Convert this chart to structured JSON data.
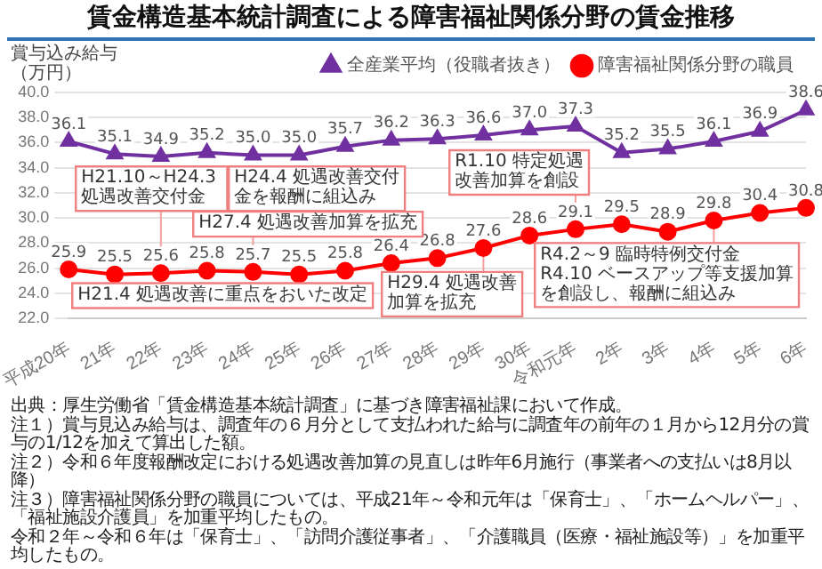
{
  "chart_data": {
    "type": "line",
    "title": "賃金構造基本統計調査による障害福祉関係分野の賃金推移",
    "ylabel": "賞与込み給与（万円）",
    "categories": [
      "平成20年",
      "21年",
      "22年",
      "23年",
      "24年",
      "25年",
      "26年",
      "27年",
      "28年",
      "29年",
      "30年",
      "令和元年",
      "2年",
      "3年",
      "4年",
      "5年",
      "6年"
    ],
    "ylim": [
      22,
      40
    ],
    "yticks": [
      {
        "value": 22,
        "label": "22.0"
      },
      {
        "value": 24,
        "label": "24.0"
      },
      {
        "value": 26,
        "label": "26.0"
      },
      {
        "value": 28,
        "label": "28.0"
      },
      {
        "value": 30,
        "label": "30.0"
      },
      {
        "value": 32,
        "label": "32.0"
      },
      {
        "value": 34,
        "label": "34.0"
      },
      {
        "value": 36,
        "label": "36.0"
      },
      {
        "value": 38,
        "label": "38.0"
      },
      {
        "value": 40,
        "label": "40.0"
      }
    ],
    "grid": "y",
    "legend": "top right",
    "series": [
      {
        "name": "全産業平均（役職者抜き）",
        "color": "#7030a0",
        "marker": "triangle",
        "values": [
          36.1,
          35.1,
          34.9,
          35.2,
          35.0,
          35.0,
          35.7,
          36.2,
          36.3,
          36.6,
          37.0,
          37.3,
          35.2,
          35.5,
          36.1,
          36.9,
          38.6
        ],
        "value_labels": [
          "36.1",
          "35.1",
          "34.9",
          "35.2",
          "35.0",
          "35.0",
          "35.7",
          "36.2",
          "36.3",
          "36.6",
          "37.0",
          "37.3",
          "35.2",
          "35.5",
          "36.1",
          "36.9",
          "38.6"
        ]
      },
      {
        "name": "障害福祉関係分野の職員",
        "color": "#ff0000",
        "marker": "circle",
        "values": [
          25.9,
          25.5,
          25.6,
          25.8,
          25.7,
          25.5,
          25.8,
          26.4,
          26.8,
          27.6,
          28.6,
          29.1,
          29.5,
          28.9,
          29.8,
          30.4,
          30.8
        ],
        "value_labels": [
          "25.9",
          "25.5",
          "25.6",
          "25.8",
          "25.7",
          "25.5",
          "25.8",
          "26.4",
          "26.8",
          "27.6",
          "28.6",
          "29.1",
          "29.5",
          "28.9",
          "29.8",
          "30.4",
          "30.8"
        ]
      }
    ],
    "annotations": [
      {
        "text": "H21.4 処遇改善に重点をおいた改定",
        "x": "21年",
        "y": 25.5
      },
      {
        "text": "H21.10～H24.3 処遇改善交付金",
        "x": "22年",
        "y": 25.6
      },
      {
        "text": "H24.4 処遇改善交付金を報酬に組込み",
        "x": "24年",
        "y": 25.7
      },
      {
        "text": "H27.4 処遇改善加算を拡充",
        "x": "27年",
        "y": 26.4
      },
      {
        "text": "H29.4 処遇改善加算を拡充",
        "x": "29年",
        "y": 27.6
      },
      {
        "text": "R1.10 特定処遇改善加算を創設",
        "x": "令和元年",
        "y": 29.1
      },
      {
        "text": "R4.2～9 臨時特例交付金\nR4.10 ベースアップ等支援加算を創設し、報酬に組込み",
        "x": "4年",
        "y": 29.8
      },
      "出典：厚生労働省「賃金構造基本統計調査」に基づき障害福祉課において作成。",
      "注１）賞与見込み給与は、調査年の６月分として支払われた給与に調査年の前年の１月から12月分の賞与の1/12を加えて算出した額。",
      "注２）令和６年度報酬改定における処遇改善加算の見直しは昨年6月施行（事業者への支払いは8月以降）",
      "注３）障害福祉関係分野の職員については、平成21年～令和元年は「保育士」、「ホームヘルパー」、「福祉施設介護員」を加重平均したもの。",
      "令和２年～令和６年は「保育士」、「訪問介護従事者」、「介護職員（医療・福祉施設等）」を加重平均したもの。"
    ]
  }
}
